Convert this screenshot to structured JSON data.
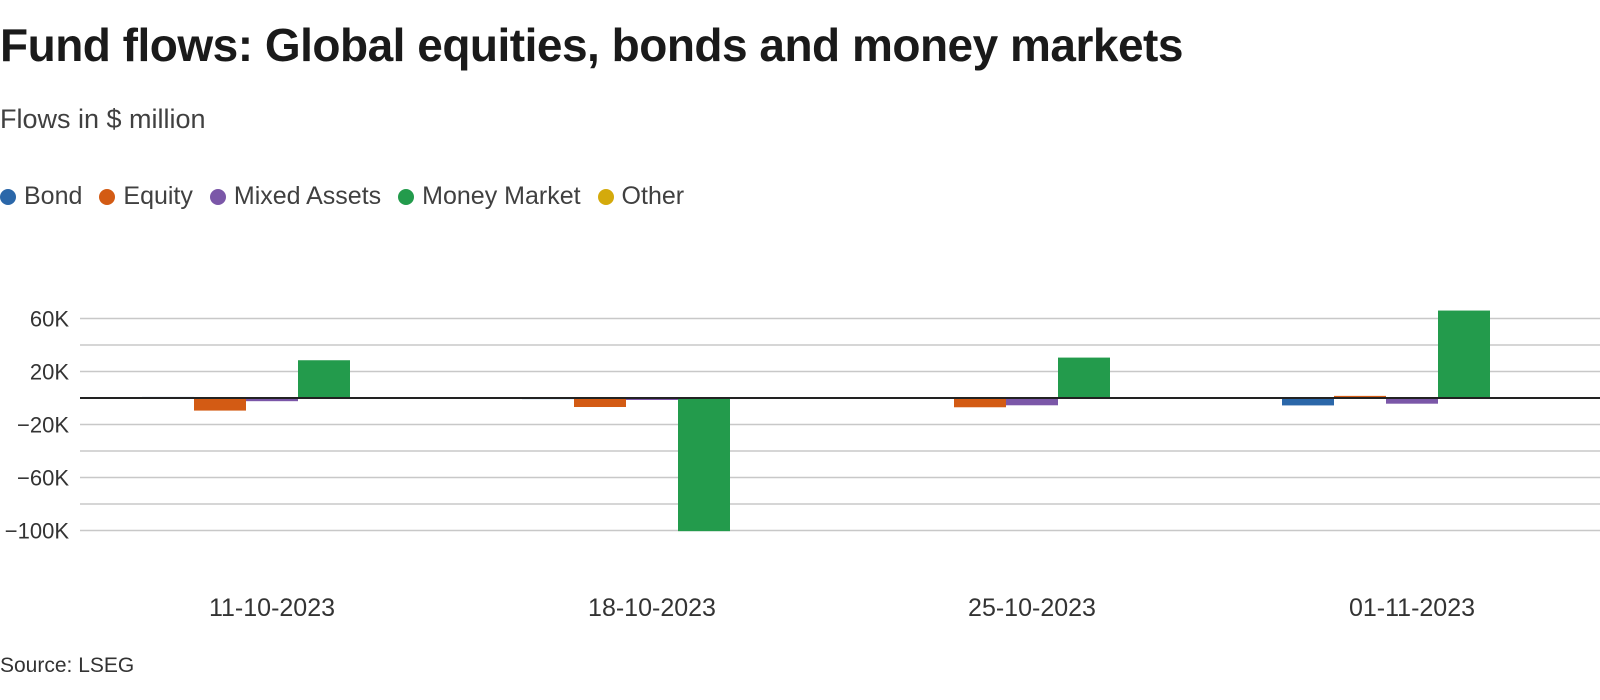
{
  "header": {
    "title": "Fund flows: Global equities, bonds and money markets",
    "subtitle": "Flows in $ million"
  },
  "footer": {
    "source": "Source: LSEG"
  },
  "chart_data": {
    "type": "bar",
    "title": "Fund flows: Global equities, bonds and money markets",
    "subtitle": "Flows in $ million",
    "xlabel": "",
    "ylabel": "",
    "categories": [
      "11-10-2023",
      "18-10-2023",
      "25-10-2023",
      "01-11-2023"
    ],
    "series": [
      {
        "name": "Bond",
        "color": "#2b67a9",
        "values": [
          800,
          300,
          500,
          -5600
        ]
      },
      {
        "name": "Equity",
        "color": "#d35b14",
        "values": [
          -9500,
          -6800,
          -7000,
          1600
        ]
      },
      {
        "name": "Mixed Assets",
        "color": "#7b57a8",
        "values": [
          -2400,
          -1500,
          -5500,
          -4300
        ]
      },
      {
        "name": "Money Market",
        "color": "#239b4c",
        "values": [
          28500,
          -100500,
          30500,
          66000
        ]
      },
      {
        "name": "Other",
        "color": "#d4aa0c",
        "values": [
          0,
          0,
          0,
          0
        ]
      }
    ],
    "ylim": [
      -100000,
      60000
    ],
    "yticks": [
      60000,
      20000,
      -20000,
      -60000,
      -100000
    ],
    "ytick_labels": [
      "60K",
      "20K",
      "−20K",
      "−60K",
      "−100K"
    ],
    "grid": true,
    "legend_position": "top-left"
  }
}
